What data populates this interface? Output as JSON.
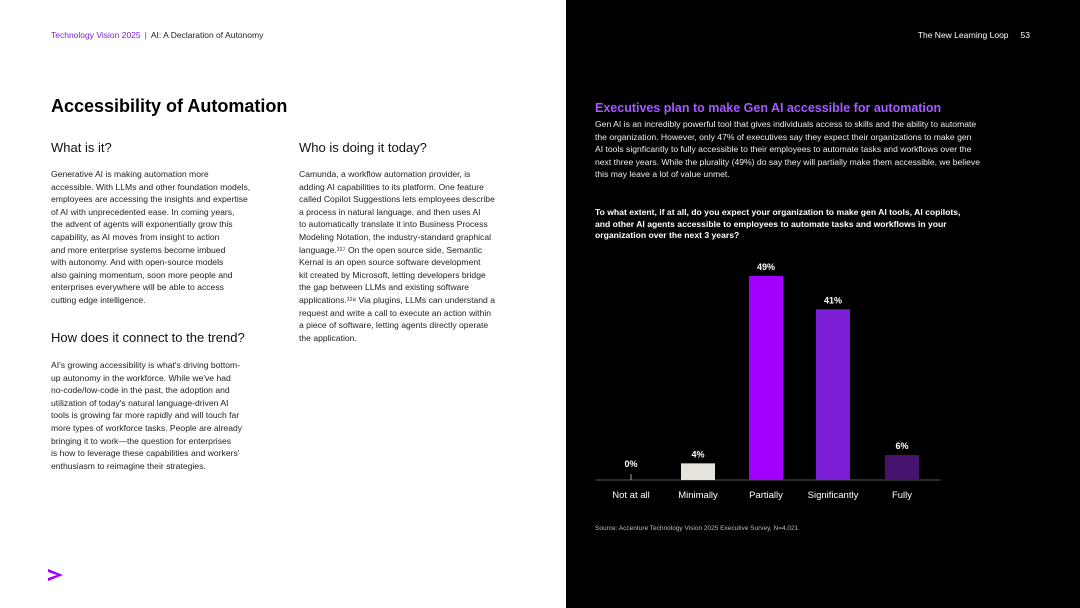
{
  "header": {
    "report": "Technology Vision 2025",
    "separator": "|",
    "section": "AI: A Declaration of Autonomy",
    "chapter": "The New Learning Loop",
    "page_number": "53"
  },
  "left": {
    "title": "Accessibility of Automation",
    "what": {
      "heading": "What is it?",
      "lines": [
        "Generative AI is making automation more",
        "accessible. With LLMs and other foundation models,",
        "employees are accessing the insights and expertise",
        "of AI with unprecedented ease. In coming years,",
        "the advent of agents will exponentially grow this",
        "capability, as AI moves from insight to action",
        "and more enterprise systems become imbued",
        "with autonomy. And with open-source models",
        "also gaining momentum, soon more people and",
        "enterprises everywhere will be able to access",
        "cutting edge intelligence."
      ]
    },
    "how": {
      "heading": "How does it connect to the trend?",
      "lines": [
        "AI's growing accessibility is what's driving bottom-",
        "up autonomy in the workforce. While we've had",
        "no-code/low-code in the past, the adoption and",
        "utilization of today's natural language-driven AI",
        "tools is growing far more rapidly and will touch far",
        "more types of workforce tasks. People are already",
        "bringing it to work—the question for enterprises",
        "is how to leverage these capabilities and workers'",
        "enthusiasm to reimagine their strategies."
      ]
    },
    "who": {
      "heading": "Who is doing it today?",
      "lines": [
        "Camunda, a workflow automation provider, is",
        "adding AI capabilities to its platform. One feature",
        "called Copilot Suggestions lets employees describe",
        "a process in natural language, and then uses AI",
        "to automatically translate it into Business Process",
        "Modeling Notation, the industry-standard graphical",
        "language.¹¹⁷ On the open source side, Semantic",
        "Kernal is an open source software development",
        "kit created by Microsoft, letting developers bridge",
        "the gap between LLMs and existing software",
        "applications.¹¹⁸ Via plugins, LLMs can understand a",
        "request and write a call to execute an action within",
        "a piece of software, letting agents directly operate",
        "the application."
      ]
    }
  },
  "right": {
    "title": "Executives plan to make Gen AI accessible for automation",
    "intro": "Gen AI is an incredibly powerful tool that gives individuals access to skills and the ability to automate the organization. However, only 47% of executives say they expect their organizations to make gen AI tools signficantly to fully accessible to their employees to automate tasks and workflows over the next three years. While the plurality (49%) do say they will partially make them accessible, we believe this may leave a lot of value unmet.",
    "question": "To what extent, if at all, do you expect your organization to make gen AI tools, AI copilots, and other AI agents accessible to employees to automate tasks and workflows in your organization over the next 3 years?",
    "source": "Source: Accenture Technology Vision 2025 Executive Survey, N=4,021"
  },
  "colors": {
    "accent": "#7a1fd1",
    "title_purple": "#a659ff",
    "bar_not_at_all": "#d9d9d9",
    "bar_minimally": "#e6e3dc",
    "bar_partially": "#a100ff",
    "bar_significantly": "#7b1ed6",
    "bar_fully": "#46136f"
  },
  "chart_data": {
    "type": "bar",
    "categories": [
      "Not at all",
      "Minimally",
      "Partially",
      "Significantly",
      "Fully"
    ],
    "values": [
      0,
      4,
      49,
      41,
      6
    ],
    "value_labels": [
      "0%",
      "4%",
      "49%",
      "41%",
      "6%"
    ],
    "ylim": [
      0,
      49
    ],
    "grid": false,
    "legend": "none",
    "xlabel": "",
    "ylabel": ""
  }
}
